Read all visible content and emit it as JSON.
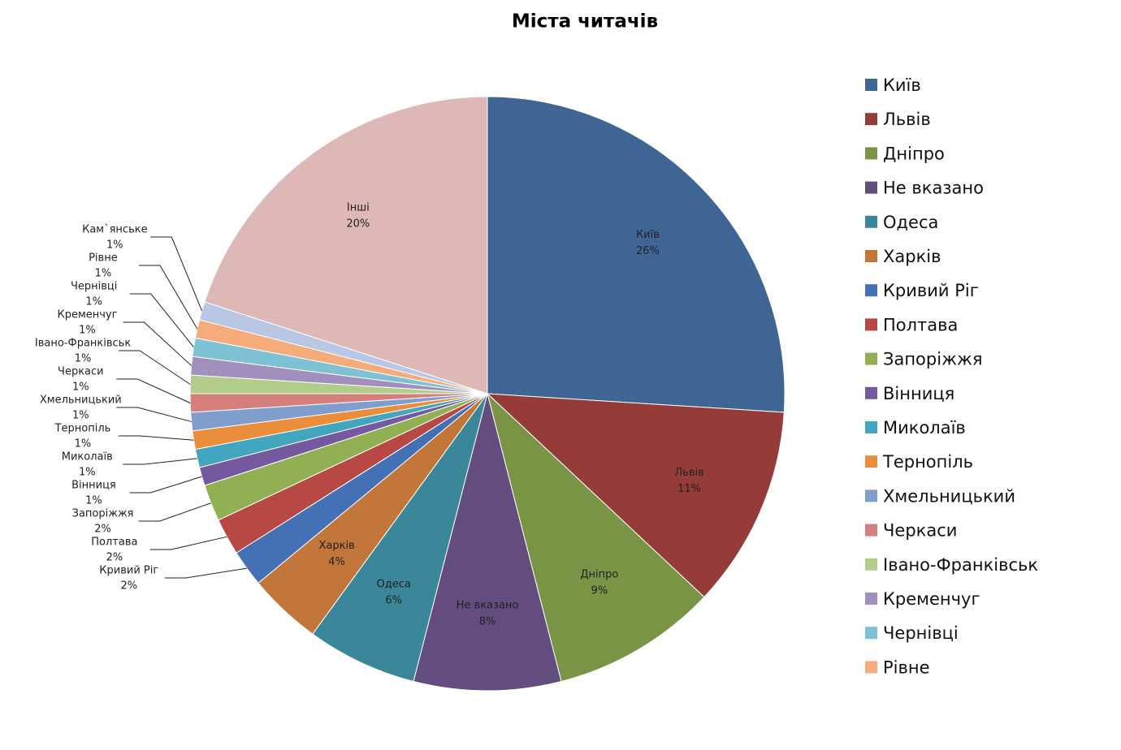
{
  "chart_data": {
    "type": "pie",
    "title": "Міста читачів",
    "categories": [
      "Київ",
      "Львів",
      "Дніпро",
      "Не вказано",
      "Одеса",
      "Харків",
      "Кривий Ріг",
      "Полтава",
      "Запоріжжя",
      "Вінниця",
      "Миколаїв",
      "Тернопіль",
      "Хмельницький",
      "Черкаси",
      "Івано-Франківськ",
      "Кременчуг",
      "Чернівці",
      "Рівне",
      "Кам`янське",
      "Інші"
    ],
    "values": [
      26,
      11,
      9,
      8,
      6,
      4,
      2,
      2,
      2,
      1,
      1,
      1,
      1,
      1,
      1,
      1,
      1,
      1,
      1,
      20
    ],
    "value_labels": [
      "26%",
      "11%",
      "9%",
      "8%",
      "6%",
      "4%",
      "2%",
      "2%",
      "2%",
      "1%",
      "1%",
      "1%",
      "1%",
      "1%",
      "1%",
      "1%",
      "1%",
      "1%",
      "1%",
      "20%"
    ],
    "colors": [
      "#3e6594",
      "#953c39",
      "#7a9445",
      "#634d7e",
      "#3a8799",
      "#c3763a",
      "#4471b6",
      "#b84845",
      "#90b052",
      "#7458a0",
      "#43a6c0",
      "#ea8e3b",
      "#7f9dcd",
      "#d47f7c",
      "#b2cc8a",
      "#a18fbd",
      "#7ec0d4",
      "#f6ab7b",
      "#b8c7e3",
      "#ddb8b7"
    ],
    "legend": "right"
  }
}
